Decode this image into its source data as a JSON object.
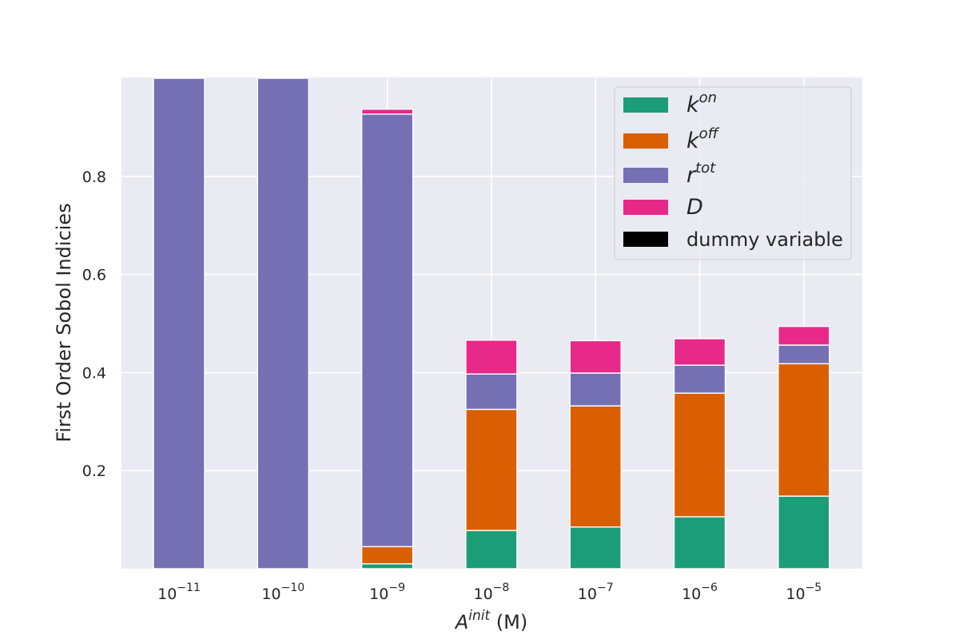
{
  "chart_data": {
    "type": "bar",
    "stacked": true,
    "categories": [
      {
        "base": "10",
        "exp": "−11"
      },
      {
        "base": "10",
        "exp": "−10"
      },
      {
        "base": "10",
        "exp": "−9"
      },
      {
        "base": "10",
        "exp": "−8"
      },
      {
        "base": "10",
        "exp": "−7"
      },
      {
        "base": "10",
        "exp": "−6"
      },
      {
        "base": "10",
        "exp": "−5"
      }
    ],
    "series": [
      {
        "key": "kon",
        "color": "#1b9e77",
        "values": [
          0.0,
          0.0,
          0.01,
          0.078,
          0.085,
          0.106,
          0.148
        ]
      },
      {
        "key": "koff",
        "color": "#d95f02",
        "values": [
          0.0,
          0.0,
          0.035,
          0.247,
          0.247,
          0.252,
          0.27
        ]
      },
      {
        "key": "rtot",
        "color": "#7570b3",
        "values": [
          1.0,
          1.0,
          0.882,
          0.072,
          0.067,
          0.057,
          0.038
        ]
      },
      {
        "key": "D",
        "color": "#e7298a",
        "values": [
          0.0,
          0.0,
          0.01,
          0.069,
          0.066,
          0.054,
          0.038
        ]
      },
      {
        "key": "dummy",
        "color": "#000000",
        "values": [
          0,
          0,
          0,
          0,
          0,
          0,
          0
        ]
      }
    ],
    "legend": [
      {
        "base": "k",
        "sup": "on",
        "italic": true,
        "color": "#1b9e77"
      },
      {
        "base": "k",
        "sup": "off",
        "italic": true,
        "color": "#d95f02"
      },
      {
        "base": "r",
        "sup": "tot",
        "italic": true,
        "color": "#7570b3"
      },
      {
        "base": "D",
        "sup": "",
        "italic": true,
        "color": "#e7298a"
      },
      {
        "base": "dummy variable",
        "sup": "",
        "italic": false,
        "color": "#000000"
      }
    ],
    "legend_position": "top-right",
    "yticks": [
      "0.2",
      "0.4",
      "0.6",
      "0.8"
    ],
    "ylim": [
      0,
      1.0
    ],
    "ylabel": "First Order Sobol Indicies",
    "xlabel": {
      "base": "A",
      "sup": "init",
      "suffix": " (M)"
    },
    "grid": true,
    "background": "#eaeaf2"
  }
}
